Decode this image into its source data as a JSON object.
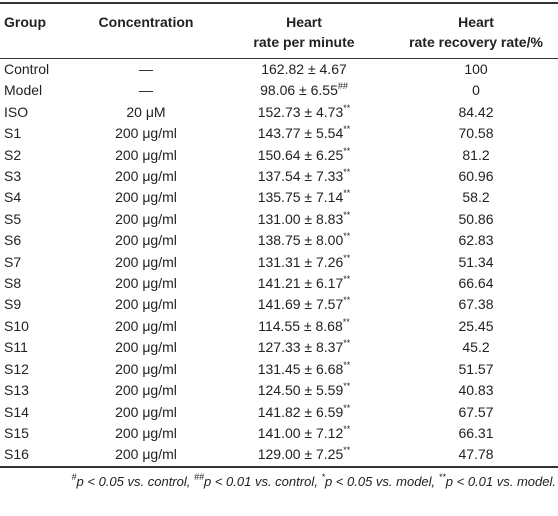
{
  "table": {
    "headers": [
      [
        "Group"
      ],
      [
        "Concentration"
      ],
      [
        "Heart",
        "rate per minute"
      ],
      [
        "Heart",
        "rate recovery rate/%"
      ]
    ],
    "rows": [
      [
        "Control",
        "—",
        {
          "text": "162.82 ± 4.67"
        },
        "100"
      ],
      [
        "Model",
        "—",
        {
          "text": "98.06 ± 6.55",
          "sup": "##"
        },
        "0"
      ],
      [
        "ISO",
        "20 μM",
        {
          "text": "152.73 ± 4.73",
          "sup": "**"
        },
        "84.42"
      ],
      [
        "S1",
        "200 μg/ml",
        {
          "text": "143.77 ± 5.54",
          "sup": "**"
        },
        "70.58"
      ],
      [
        "S2",
        "200 μg/ml",
        {
          "text": "150.64 ± 6.25",
          "sup": "**"
        },
        "81.2"
      ],
      [
        "S3",
        "200 μg/ml",
        {
          "text": "137.54 ± 7.33",
          "sup": "**"
        },
        "60.96"
      ],
      [
        "S4",
        "200 μg/ml",
        {
          "text": "135.75 ± 7.14",
          "sup": "**"
        },
        "58.2"
      ],
      [
        "S5",
        "200 μg/ml",
        {
          "text": "131.00 ± 8.83",
          "sup": "**"
        },
        "50.86"
      ],
      [
        "S6",
        "200 μg/ml",
        {
          "text": "138.75 ± 8.00",
          "sup": "**"
        },
        "62.83"
      ],
      [
        "S7",
        "200 μg/ml",
        {
          "text": "131.31 ± 7.26",
          "sup": "**"
        },
        "51.34"
      ],
      [
        "S8",
        "200 μg/ml",
        {
          "text": "141.21 ± 6.17",
          "sup": "**"
        },
        "66.64"
      ],
      [
        "S9",
        "200 μg/ml",
        {
          "text": "141.69 ± 7.57",
          "sup": "**"
        },
        "67.38"
      ],
      [
        "S10",
        "200 μg/ml",
        {
          "text": "114.55 ± 8.68",
          "sup": "**"
        },
        "25.45"
      ],
      [
        "S11",
        "200 μg/ml",
        {
          "text": "127.33 ± 8.37",
          "sup": "**"
        },
        "45.2"
      ],
      [
        "S12",
        "200 μg/ml",
        {
          "text": "131.45 ± 6.68",
          "sup": "**"
        },
        "51.57"
      ],
      [
        "S13",
        "200 μg/ml",
        {
          "text": "124.50 ± 5.59",
          "sup": "**"
        },
        "40.83"
      ],
      [
        "S14",
        "200 μg/ml",
        {
          "text": "141.82 ± 6.59",
          "sup": "**"
        },
        "67.57"
      ],
      [
        "S15",
        "200 μg/ml",
        {
          "text": "141.00 ± 7.12",
          "sup": "**"
        },
        "66.31"
      ],
      [
        "S16",
        "200 μg/ml",
        {
          "text": "129.00 ± 7.25",
          "sup": "**"
        },
        "47.78"
      ]
    ],
    "footnote": [
      {
        "sup": "#",
        "text": "p < 0.05 vs. control, "
      },
      {
        "sup": "##",
        "text": "p < 0.01 vs. control, "
      },
      {
        "sup": "*",
        "text": "p < 0.05 vs. model, "
      },
      {
        "sup": "**",
        "text": "p < 0.01 vs. model."
      }
    ]
  }
}
